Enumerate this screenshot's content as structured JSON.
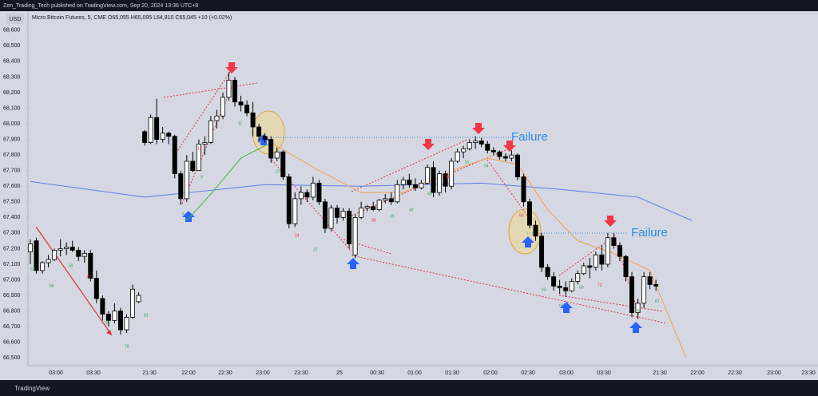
{
  "chart_data": {
    "type": "candlestick",
    "publisher": "Zen_Trading_Tech published on TradingView.com, Sep 20, 2024 13:36 UTC+8",
    "title": "Micro Bitcoin Futures, 5, CME  O65,055  H65,095  L64,810  C65,045  +10 (+0.02%)",
    "currency": "USD",
    "brand": "TradingView",
    "up_color": "#ffffff",
    "down_color": "#000000",
    "ylim": [
      66450,
      68640
    ],
    "yticks": [
      {
        "value": 68600,
        "label": "68,600"
      },
      {
        "value": 68500,
        "label": "68,500"
      },
      {
        "value": 68400,
        "label": "68,400"
      },
      {
        "value": 68300,
        "label": "68,300"
      },
      {
        "value": 68200,
        "label": "68,200"
      },
      {
        "value": 68100,
        "label": "68,100"
      },
      {
        "value": 68000,
        "label": "68,000"
      },
      {
        "value": 67900,
        "label": "67,900"
      },
      {
        "value": 67800,
        "label": "67,800"
      },
      {
        "value": 67700,
        "label": "67,700"
      },
      {
        "value": 67600,
        "label": "67,600"
      },
      {
        "value": 67500,
        "label": "67,500"
      },
      {
        "value": 67400,
        "label": "67,400"
      },
      {
        "value": 67300,
        "label": "67,300"
      },
      {
        "value": 67200,
        "label": "67,200"
      },
      {
        "value": 67100,
        "label": "67,100"
      },
      {
        "value": 67000,
        "label": "67,000"
      },
      {
        "value": 66900,
        "label": "66,900"
      },
      {
        "value": 66800,
        "label": "66,800"
      },
      {
        "value": 66700,
        "label": "66,700"
      },
      {
        "value": 66600,
        "label": "66,600"
      },
      {
        "value": 66500,
        "label": "66,500"
      }
    ],
    "xticks": [
      "03:00",
      "03:30",
      "21:30",
      "22:00",
      "22:30",
      "23:00",
      "23:30",
      "25",
      "00:30",
      "01:00",
      "01:30",
      "02:00",
      "02:30",
      "03:00",
      "03:30",
      "21:30",
      "22:00",
      "22:30",
      "23:00",
      "23:30"
    ],
    "candles": [
      [
        67180,
        67260,
        67100,
        67230
      ],
      [
        67250,
        67270,
        67040,
        67060
      ],
      [
        67060,
        67120,
        67040,
        67110
      ],
      [
        67110,
        67160,
        67080,
        67130
      ],
      [
        67130,
        67200,
        67120,
        67190
      ],
      [
        67190,
        67260,
        67150,
        67200
      ],
      [
        67200,
        67240,
        67160,
        67210
      ],
      [
        67210,
        67250,
        67180,
        67190
      ],
      [
        67190,
        67210,
        67120,
        67150
      ],
      [
        67150,
        67190,
        67110,
        67170
      ],
      [
        67170,
        67190,
        66990,
        67010
      ],
      [
        67010,
        67060,
        66850,
        66880
      ],
      [
        66880,
        66900,
        66740,
        66780
      ],
      [
        66780,
        66800,
        66700,
        66740
      ],
      [
        66740,
        66850,
        66720,
        66800
      ],
      [
        66800,
        66820,
        66650,
        66680
      ],
      [
        66680,
        66780,
        66660,
        66760
      ],
      [
        66760,
        66970,
        66750,
        66940
      ],
      [
        66860,
        66920,
        66850,
        66900
      ],
      [
        67950,
        67960,
        67860,
        67880
      ],
      [
        67880,
        68060,
        67870,
        68040
      ],
      [
        68040,
        68160,
        67870,
        67900
      ],
      [
        67900,
        67980,
        67880,
        67940
      ],
      [
        67940,
        67950,
        67870,
        67920
      ],
      [
        67920,
        67930,
        67650,
        67680
      ],
      [
        67680,
        67700,
        67480,
        67520
      ],
      [
        67520,
        67800,
        67500,
        67760
      ],
      [
        67760,
        67820,
        67690,
        67700
      ],
      [
        67700,
        67900,
        67700,
        67870
      ],
      [
        67870,
        67920,
        67800,
        67880
      ],
      [
        67880,
        68050,
        67870,
        68020
      ],
      [
        68020,
        68090,
        67970,
        68050
      ],
      [
        68050,
        68200,
        68030,
        68170
      ],
      [
        68170,
        68330,
        68150,
        68280
      ],
      [
        68280,
        68300,
        68110,
        68140
      ],
      [
        68140,
        68180,
        68080,
        68120
      ],
      [
        68120,
        68150,
        68050,
        68070
      ],
      [
        68070,
        68140,
        67920,
        67980
      ],
      [
        67980,
        68000,
        67880,
        67920
      ],
      [
        67920,
        67940,
        67880,
        67900
      ],
      [
        67900,
        67920,
        67750,
        67780
      ],
      [
        67780,
        67850,
        67760,
        67820
      ],
      [
        67820,
        67830,
        67640,
        67660
      ],
      [
        67660,
        67680,
        67330,
        67360
      ],
      [
        67360,
        67560,
        67340,
        67520
      ],
      [
        67520,
        67600,
        67480,
        67560
      ],
      [
        67560,
        67580,
        67500,
        67530
      ],
      [
        67530,
        67660,
        67510,
        67620
      ],
      [
        67620,
        67640,
        67480,
        67500
      ],
      [
        67500,
        67520,
        67300,
        67330
      ],
      [
        67330,
        67480,
        67310,
        67460
      ],
      [
        67460,
        67480,
        67360,
        67400
      ],
      [
        67400,
        67460,
        67380,
        67440
      ],
      [
        67440,
        67460,
        67200,
        67230
      ],
      [
        67160,
        67420,
        67140,
        67400
      ],
      [
        67400,
        67500,
        67390,
        67460
      ],
      [
        67460,
        67480,
        67440,
        67470
      ],
      [
        67470,
        67500,
        67440,
        67450
      ],
      [
        67450,
        67520,
        67440,
        67510
      ],
      [
        67510,
        67550,
        67490,
        67520
      ],
      [
        67520,
        67560,
        67480,
        67500
      ],
      [
        67500,
        67640,
        67490,
        67610
      ],
      [
        67610,
        67660,
        67580,
        67640
      ],
      [
        67640,
        67680,
        67590,
        67610
      ],
      [
        67610,
        67650,
        67570,
        67590
      ],
      [
        67590,
        67640,
        67580,
        67620
      ],
      [
        67620,
        67740,
        67610,
        67720
      ],
      [
        67720,
        67760,
        67530,
        67560
      ],
      [
        67560,
        67700,
        67540,
        67680
      ],
      [
        67680,
        67700,
        67560,
        67600
      ],
      [
        67600,
        67780,
        67580,
        67760
      ],
      [
        67760,
        67840,
        67750,
        67820
      ],
      [
        67820,
        67860,
        67780,
        67840
      ],
      [
        67840,
        67900,
        67830,
        67880
      ],
      [
        67880,
        67920,
        67840,
        67890
      ],
      [
        67890,
        67910,
        67850,
        67870
      ],
      [
        67870,
        67890,
        67810,
        67830
      ],
      [
        67830,
        67850,
        67800,
        67820
      ],
      [
        67820,
        67830,
        67770,
        67790
      ],
      [
        67790,
        67810,
        67760,
        67780
      ],
      [
        67780,
        67830,
        67760,
        67800
      ],
      [
        67800,
        67810,
        67640,
        67660
      ],
      [
        67660,
        67680,
        67470,
        67500
      ],
      [
        67500,
        67520,
        67330,
        67350
      ],
      [
        67350,
        67380,
        67250,
        67280
      ],
      [
        67280,
        67300,
        67050,
        67080
      ],
      [
        67080,
        67100,
        67000,
        67020
      ],
      [
        67020,
        67050,
        66930,
        66960
      ],
      [
        66960,
        67000,
        66910,
        66950
      ],
      [
        66950,
        66990,
        66890,
        66930
      ],
      [
        66930,
        67010,
        66920,
        66990
      ],
      [
        66990,
        67060,
        66970,
        67040
      ],
      [
        67040,
        67110,
        67030,
        67090
      ],
      [
        67090,
        67140,
        67010,
        67080
      ],
      [
        67080,
        67180,
        67060,
        67160
      ],
      [
        67160,
        67220,
        67060,
        67100
      ],
      [
        67100,
        67300,
        67080,
        67270
      ],
      [
        67270,
        67300,
        67200,
        67220
      ],
      [
        67220,
        67240,
        67120,
        67150
      ],
      [
        67150,
        67160,
        66990,
        67020
      ],
      [
        67020,
        67050,
        66760,
        66790
      ],
      [
        66790,
        66880,
        66750,
        66850
      ],
      [
        66850,
        67050,
        66820,
        67020
      ],
      [
        67020,
        67050,
        66940,
        66970
      ],
      [
        66970,
        67000,
        66930,
        66960
      ]
    ],
    "lines": [
      {
        "color": "#5b7fe8",
        "x": [
          0,
          19,
          39,
          55,
          75,
          88,
          101,
          110
        ],
        "values": [
          67630,
          67530,
          67610,
          67600,
          67620,
          67580,
          67530,
          67380
        ]
      },
      {
        "color": "#f0a050",
        "x": [
          40,
          48,
          55,
          62,
          70,
          76,
          81,
          86,
          91,
          97,
          103,
          109
        ],
        "values": [
          67880,
          67700,
          67560,
          67560,
          67700,
          67780,
          67740,
          67450,
          67250,
          67170,
          67060,
          66500
        ]
      },
      {
        "color": "#4caf50",
        "x": [
          26,
          30,
          35,
          40
        ],
        "values": [
          67380,
          67550,
          67780,
          67880
        ]
      }
    ],
    "annotations": [
      "Failure",
      "Failure"
    ],
    "bar_counts": [
      "63",
      "66",
      "69",
      "72",
      "75",
      "78",
      "81",
      "6",
      "9",
      "12",
      "11",
      "21",
      "24",
      "27",
      "36",
      "39",
      "42",
      "45",
      "48",
      "51",
      "54",
      "60",
      "63",
      "66",
      "69",
      "72",
      "78",
      "81"
    ]
  }
}
